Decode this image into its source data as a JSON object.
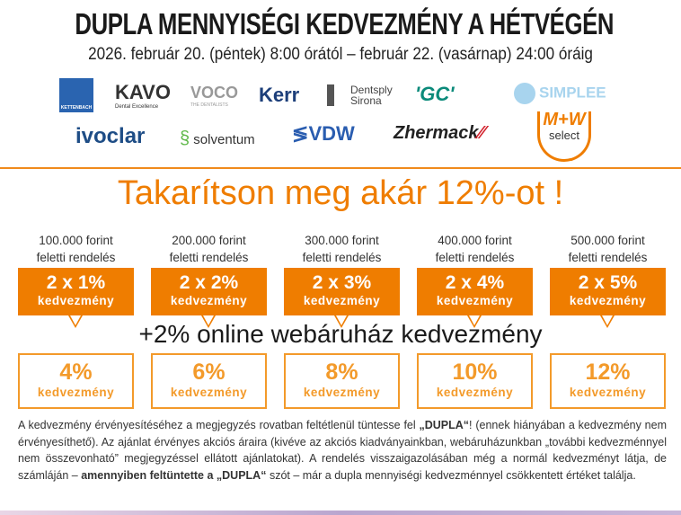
{
  "title": "DUPLA MENNYISÉGI KEDVEZMÉNY A HÉTVÉGÉN",
  "date": "2026. február 20. (péntek) 8:00 órától – február 22. (vasárnap) 24:00 óráig",
  "logos": {
    "kettenbach": "KETTENBACH",
    "kavo": "KAVO",
    "kavo_sub": "Dental Excellence",
    "voco": "VOCO",
    "voco_sub": "THE DENTALISTS",
    "kerr": "Kerr",
    "dentsply": "Dentsply",
    "sirona": "Sirona",
    "gc": "'GC'",
    "simplee": "SIMPLEE",
    "ivoclar": "ivoclar",
    "solventum": "solventum",
    "vdw": "VDW",
    "zhermack": "Zhermack",
    "mw": "M+W",
    "mw_sub": "select"
  },
  "headline": "Takarítson meg akár 12%-ot !",
  "tiers": [
    {
      "amount": "100.000 forint",
      "caption": "feletti rendelés",
      "discount": "2 x 1%",
      "label": "kedvezmény",
      "total": "4%",
      "total_label": "kedvezmény"
    },
    {
      "amount": "200.000 forint",
      "caption": "feletti rendelés",
      "discount": "2 x 2%",
      "label": "kedvezmény",
      "total": "6%",
      "total_label": "kedvezmény"
    },
    {
      "amount": "300.000 forint",
      "caption": "feletti rendelés",
      "discount": "2 x 3%",
      "label": "kedvezmény",
      "total": "8%",
      "total_label": "kedvezmény"
    },
    {
      "amount": "400.000 forint",
      "caption": "feletti rendelés",
      "discount": "2 x 4%",
      "label": "kedvezmény",
      "total": "10%",
      "total_label": "kedvezmény"
    },
    {
      "amount": "500.000 forint",
      "caption": "feletti rendelés",
      "discount": "2 x 5%",
      "label": "kedvezmény",
      "total": "12%",
      "total_label": "kedvezmény"
    }
  ],
  "online": "+2% online webáruház kedvezmény",
  "note": {
    "p1": "A  kedvezmény érvényesítéséhez a megjegyzés rovatban feltétlenül tüntesse fel ",
    "b1": "„DUPLA“",
    "p2": "! (ennek hiányában a kedvezmény nem érvényesíthető). Az ajánlat érvényes akciós áraira (kivéve az akciós kiadványainkban, webáruházunkban „további kedvezménnyel nem összevonható” megjegyzéssel ellátott ajánlatokat). A rendelés  visszaigazolásában még a normál kedvezményt látja, de számláján – ",
    "b2": "amennyiben feltüntette a „DUPLA“",
    "p3": " szót – már a dupla mennyiségi kedvezménnyel csökkentett értéket találja."
  },
  "colors": {
    "orange": "#ef7d00",
    "light_orange": "#f39a2a"
  }
}
